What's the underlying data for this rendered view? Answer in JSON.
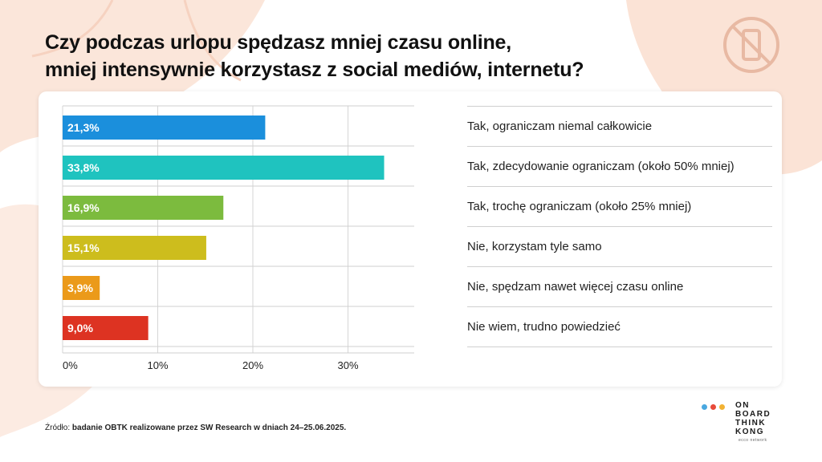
{
  "title_lines": [
    "Czy podczas urlopu spędzasz mniej czasu online,",
    "mniej intensywnie korzystasz z social mediów, internetu?"
  ],
  "source": {
    "prefix": "Źródło: ",
    "text": "badanie OBTK  realizowane przez SW Research w dniach 24–25.06.2025."
  },
  "brand": {
    "lines": [
      "ON",
      "BOARD",
      "THINK",
      "KONG"
    ],
    "sub": "ecco network",
    "dot_colors": [
      "#4aa8e0",
      "#e84a3a",
      "#f2b233"
    ],
    "decor_icon": "no-phone-icon"
  },
  "chart_data": {
    "type": "bar",
    "orientation": "horizontal",
    "categories": [
      "Tak, ograniczam niemal całkowicie",
      "Tak, zdecydowanie ograniczam  (około 50% mniej)",
      "Tak, trochę ograniczam (około 25% mniej)",
      "Nie, korzystam tyle samo",
      "Nie, spędzam nawet więcej czasu online",
      "Nie wiem, trudno powiedzieć"
    ],
    "values": [
      21.3,
      33.8,
      16.9,
      15.1,
      3.9,
      9.0
    ],
    "value_labels": [
      "21,3%",
      "33,8%",
      "16,9%",
      "15,1%",
      "3,9%",
      "9,0%"
    ],
    "colors": [
      "#1b8fdc",
      "#1fc3bf",
      "#7cbb3e",
      "#cdbd1d",
      "#eb9a1a",
      "#dd3322"
    ],
    "x_ticks": [
      0,
      10,
      20,
      30
    ],
    "x_tick_labels": [
      "0%",
      "10%",
      "20%",
      "30%"
    ],
    "xlim": [
      0,
      35
    ],
    "grid": true,
    "legend": "none"
  }
}
